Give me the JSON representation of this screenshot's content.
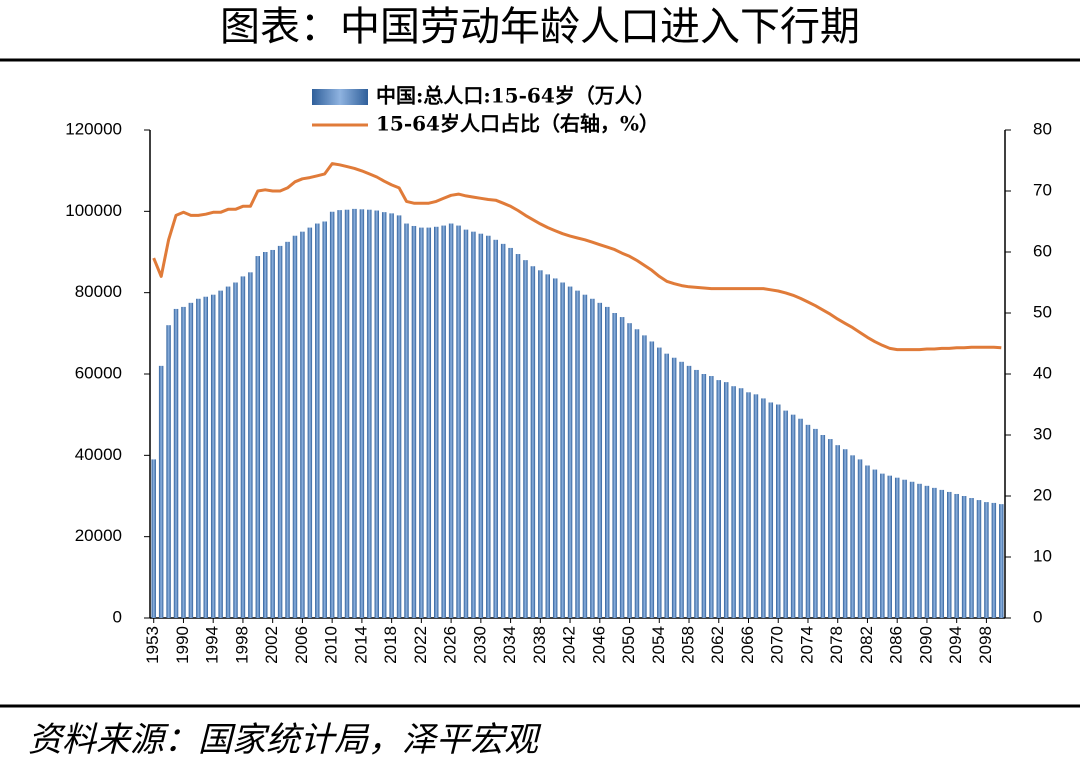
{
  "chart_data": {
    "type": "bar",
    "title": "图表：中国劳动年龄人口进入下行期",
    "source": "资料来源：国家统计局，泽平宏观",
    "categories": [
      "1953",
      null,
      null,
      null,
      "1990",
      null,
      null,
      null,
      "1994",
      null,
      null,
      null,
      "1998",
      null,
      null,
      null,
      "2002",
      null,
      null,
      null,
      "2006",
      null,
      null,
      null,
      "2010",
      null,
      null,
      null,
      "2014",
      null,
      null,
      null,
      "2018",
      null,
      null,
      null,
      "2022",
      null,
      null,
      null,
      "2026",
      null,
      null,
      null,
      "2030",
      null,
      null,
      null,
      "2034",
      null,
      null,
      null,
      "2038",
      null,
      null,
      null,
      "2042",
      null,
      null,
      null,
      "2046",
      null,
      null,
      null,
      "2050",
      null,
      null,
      null,
      "2054",
      null,
      null,
      null,
      "2058",
      null,
      null,
      null,
      "2062",
      null,
      null,
      null,
      "2066",
      null,
      null,
      null,
      "2070",
      null,
      null,
      null,
      "2074",
      null,
      null,
      null,
      "2078",
      null,
      null,
      null,
      "2082",
      null,
      null,
      null,
      "2086",
      null,
      null,
      null,
      "2090",
      null,
      null,
      null,
      "2094",
      null,
      null,
      null,
      "2098",
      null,
      null
    ],
    "series": [
      {
        "name": "中国:总人口:15-64岁（万人）",
        "type": "bar",
        "color": "#4f81bd",
        "axis": "y",
        "values": [
          39000,
          62000,
          72000,
          76000,
          76500,
          77500,
          78500,
          79000,
          79500,
          80500,
          81500,
          82500,
          84000,
          85000,
          89000,
          90000,
          90500,
          91500,
          92500,
          94000,
          95000,
          96000,
          97000,
          97500,
          99900,
          100300,
          100400,
          100600,
          100500,
          100400,
          100200,
          99800,
          99500,
          99000,
          97000,
          96400,
          96000,
          96000,
          96200,
          96500,
          97000,
          96500,
          95500,
          95000,
          94500,
          94000,
          93000,
          92000,
          91000,
          89500,
          88000,
          86500,
          85500,
          84500,
          83500,
          82500,
          81500,
          80500,
          79500,
          78500,
          77500,
          76500,
          75000,
          74000,
          72500,
          71000,
          69500,
          68000,
          66500,
          65000,
          64000,
          63000,
          62000,
          61000,
          60000,
          59500,
          58500,
          58000,
          57000,
          56500,
          55500,
          55000,
          54000,
          53000,
          52500,
          51000,
          50000,
          49000,
          47500,
          46500,
          45000,
          44000,
          42500,
          41500,
          40000,
          39000,
          37500,
          36500,
          35500,
          35000,
          34500,
          34000,
          33500,
          33000,
          32500,
          32000,
          31500,
          31000,
          30500,
          30000,
          29500,
          29000,
          28500,
          28300,
          28000
        ]
      },
      {
        "name": "15-64岁人口占比（右轴，%）",
        "type": "line",
        "color": "#e07b39",
        "axis": "y2",
        "values": [
          59,
          56,
          62,
          66,
          66.5,
          66,
          66,
          66.2,
          66.5,
          66.5,
          67,
          67,
          67.5,
          67.5,
          70,
          70.2,
          70,
          70,
          70.5,
          71.5,
          72,
          72.2,
          72.5,
          72.8,
          74.5,
          74.3,
          74,
          73.7,
          73.3,
          72.8,
          72.3,
          71.6,
          71,
          70.5,
          68.3,
          68,
          68,
          68,
          68.3,
          68.8,
          69.3,
          69.5,
          69.2,
          69,
          68.8,
          68.6,
          68.5,
          68,
          67.5,
          66.8,
          66,
          65.3,
          64.6,
          64,
          63.5,
          63,
          62.6,
          62.3,
          62,
          61.6,
          61.2,
          60.8,
          60.4,
          59.8,
          59.3,
          58.6,
          57.8,
          57,
          56,
          55.2,
          54.8,
          54.5,
          54.3,
          54.2,
          54.1,
          54,
          54,
          54,
          54,
          54,
          54,
          54,
          54,
          53.8,
          53.6,
          53.3,
          52.9,
          52.4,
          51.8,
          51.2,
          50.5,
          49.8,
          49,
          48.3,
          47.6,
          46.8,
          46,
          45.3,
          44.7,
          44.2,
          44,
          44,
          44,
          44,
          44.1,
          44.1,
          44.2,
          44.2,
          44.3,
          44.3,
          44.4,
          44.4,
          44.4,
          44.4,
          44.3
        ]
      }
    ],
    "ylim": [
      0,
      120000
    ],
    "yticks": [
      0,
      20000,
      40000,
      60000,
      80000,
      100000,
      120000
    ],
    "y2lim": [
      0,
      80
    ],
    "y2ticks": [
      0,
      10,
      20,
      30,
      40,
      50,
      60,
      70,
      80
    ]
  }
}
